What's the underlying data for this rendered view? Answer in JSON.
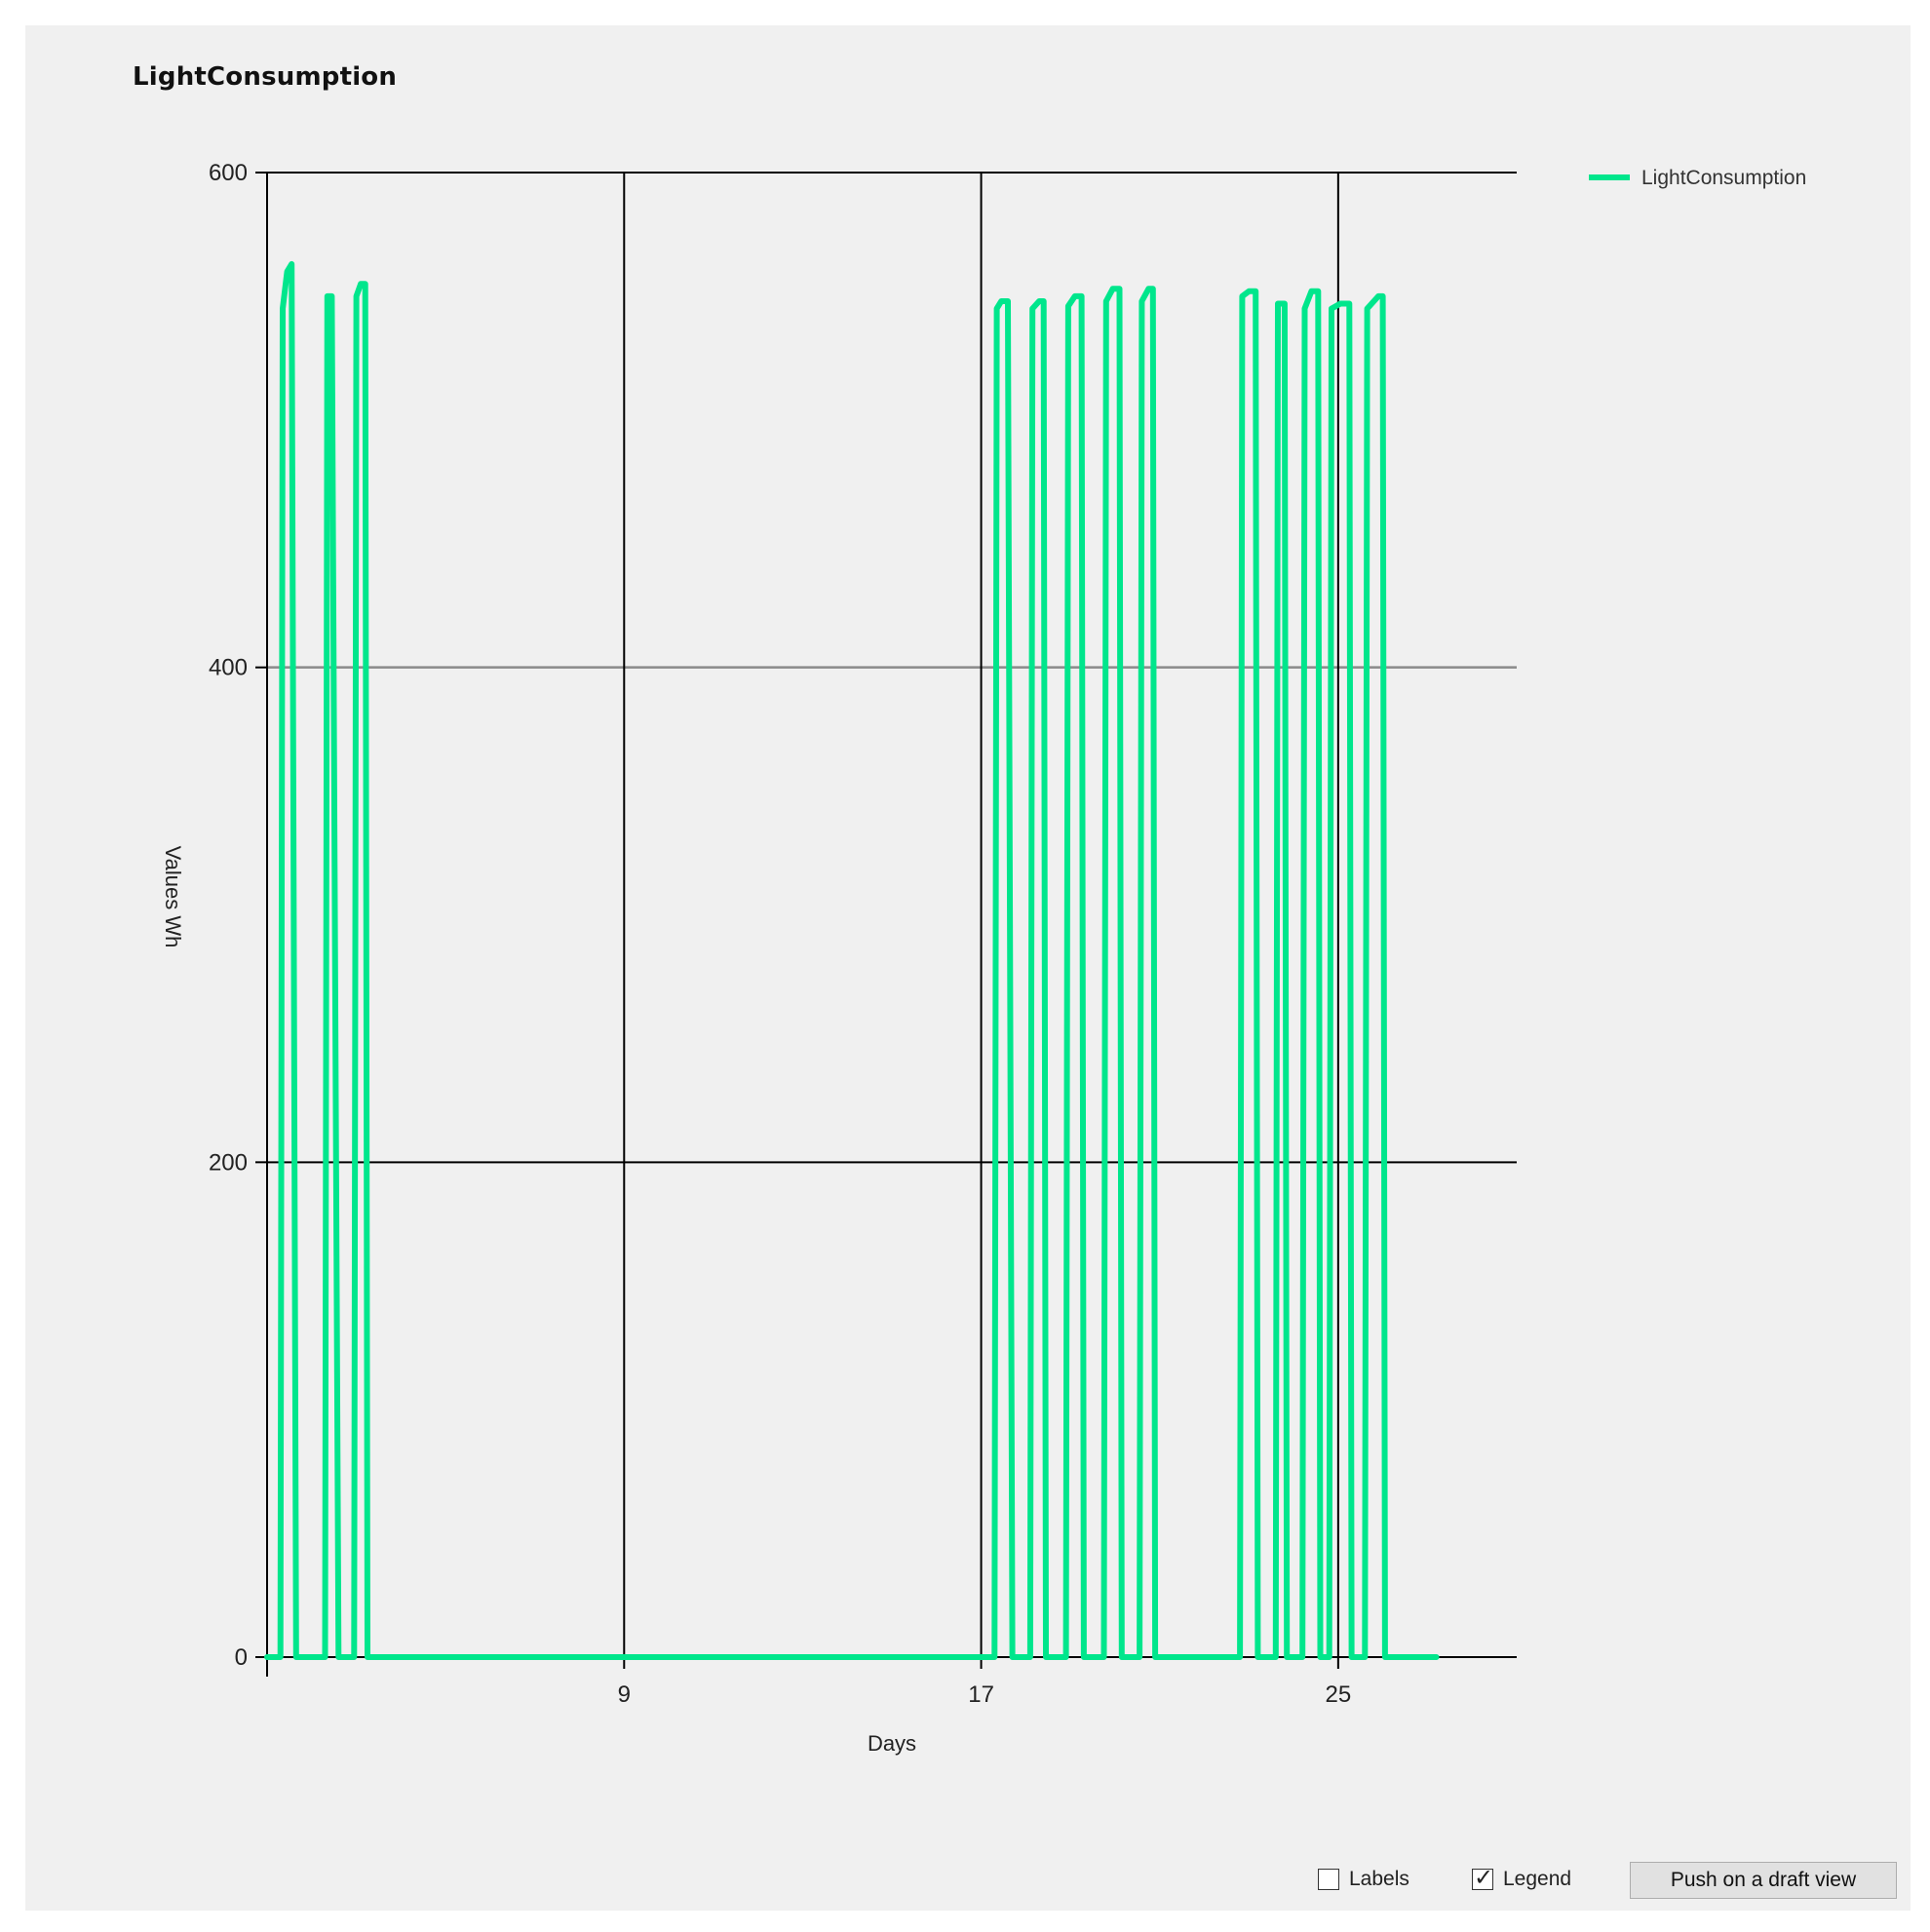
{
  "window": {
    "title": "LightConsumption"
  },
  "controls": {
    "labels_checkbox": {
      "label": "Labels",
      "checked": false
    },
    "legend_checkbox": {
      "label": "Legend",
      "checked": true
    },
    "draft_button_label": "Push on a draft view"
  },
  "colors": {
    "series": "#00e68c",
    "background": "#f0f0f0",
    "grid_major": "#000000",
    "grid_400": "#8a8a8a"
  },
  "chart_data": {
    "type": "line",
    "title": "LightConsumption",
    "xlabel": "Days",
    "ylabel": "Values Wh",
    "xlim": [
      1,
      29
    ],
    "ylim": [
      0,
      600
    ],
    "x_ticks": [
      9,
      17,
      25
    ],
    "y_ticks": [
      0,
      200,
      400,
      600
    ],
    "grid": true,
    "legend": {
      "position": "top-right"
    },
    "series": [
      {
        "name": "LightConsumption",
        "color": "#00e68c",
        "x": [
          1.0,
          1.3,
          1.35,
          1.45,
          1.55,
          1.65,
          1.75,
          1.8,
          1.85,
          2.0,
          2.0,
          2.3,
          2.35,
          2.45,
          2.6,
          2.65,
          2.95,
          3.0,
          3.1,
          3.2,
          3.25,
          3.35,
          17.3,
          17.35,
          17.45,
          17.6,
          17.7,
          17.75,
          18.1,
          18.15,
          18.3,
          18.4,
          18.45,
          18.9,
          18.95,
          19.1,
          19.25,
          19.3,
          19.75,
          19.8,
          19.95,
          20.1,
          20.15,
          20.55,
          20.6,
          20.75,
          20.85,
          20.9,
          21.0,
          22.8,
          22.85,
          23.0,
          23.15,
          23.2,
          23.6,
          23.65,
          23.8,
          23.85,
          24.2,
          24.25,
          24.4,
          24.55,
          24.6,
          24.8,
          24.85,
          25.05,
          25.25,
          25.3,
          25.6,
          25.65,
          25.9,
          26.0,
          26.05,
          26.4,
          26.45,
          26.6,
          26.75,
          26.8,
          27.2
        ],
        "y": [
          0,
          0,
          545,
          560,
          563,
          0,
          0,
          0,
          0,
          0,
          0,
          0,
          550,
          550,
          0,
          0,
          0,
          550,
          555,
          555,
          0,
          0,
          0,
          545,
          548,
          548,
          0,
          0,
          0,
          545,
          548,
          548,
          0,
          0,
          546,
          550,
          550,
          0,
          0,
          548,
          553,
          553,
          0,
          0,
          548,
          553,
          553,
          0,
          0,
          0,
          550,
          552,
          552,
          0,
          0,
          547,
          547,
          0,
          0,
          545,
          552,
          552,
          0,
          0,
          545,
          547,
          547,
          0,
          0,
          545,
          550,
          550,
          0,
          0,
          0,
          0,
          0,
          0,
          0
        ]
      }
    ]
  }
}
